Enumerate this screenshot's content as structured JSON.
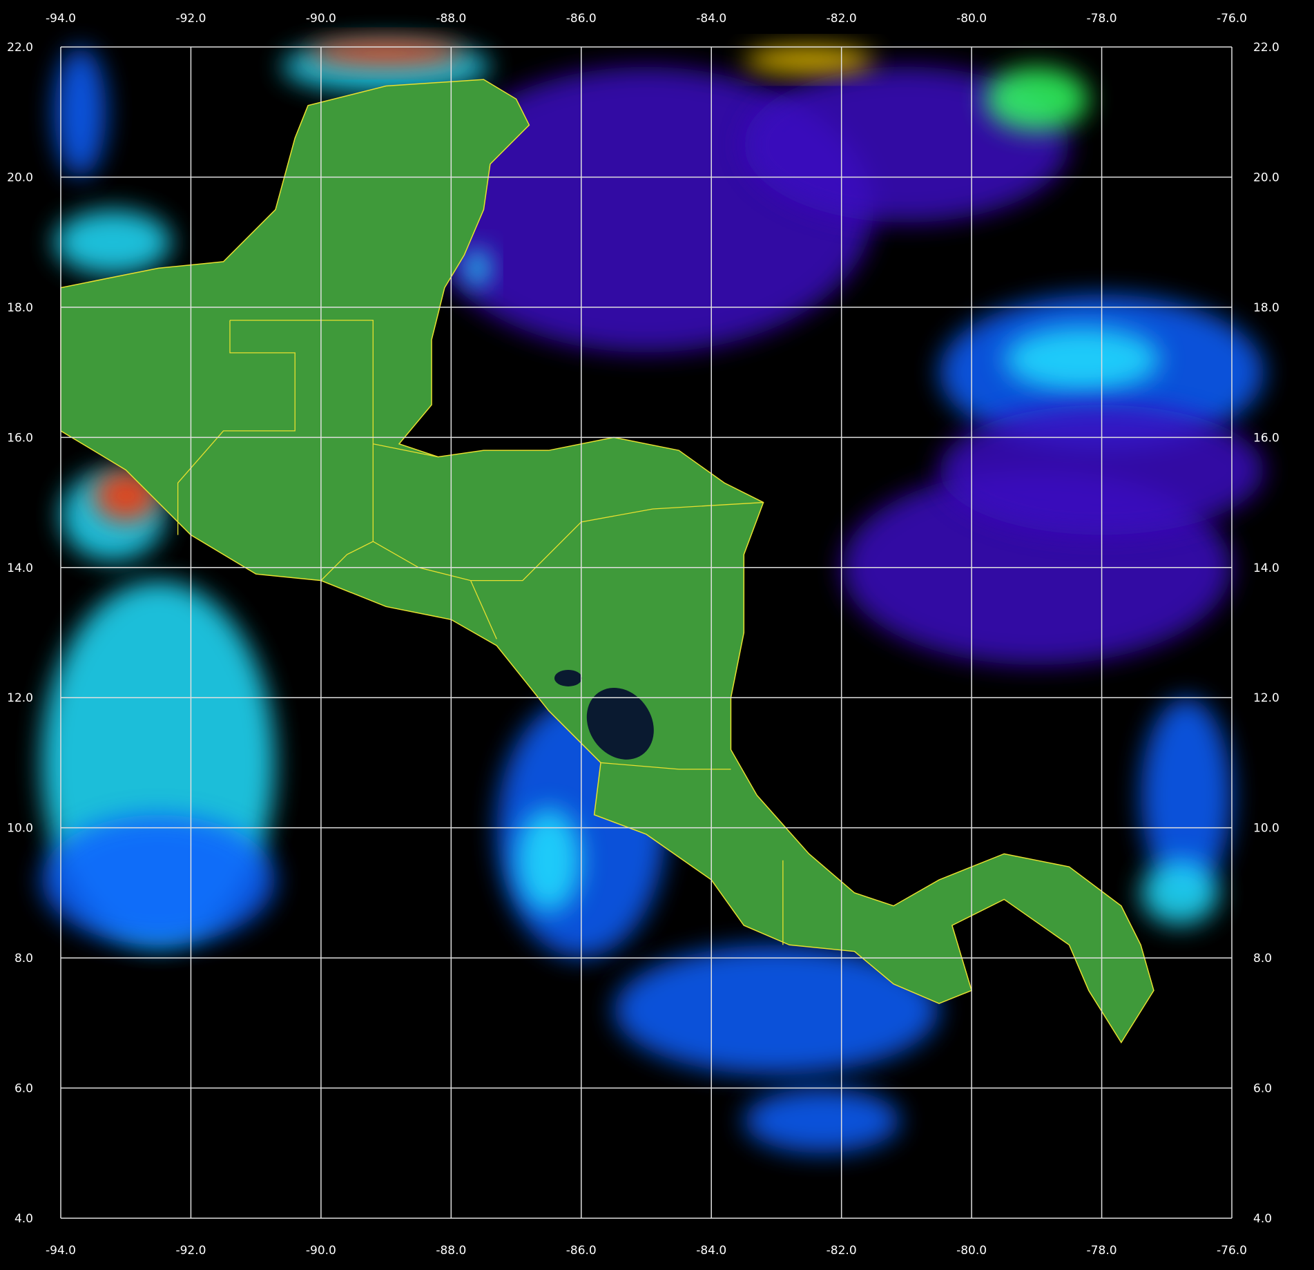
{
  "map": {
    "lon_range": [
      -94.0,
      -76.0
    ],
    "lat_range": [
      4.0,
      22.0
    ],
    "lon_ticks": [
      "-94.0",
      "-92.0",
      "-90.0",
      "-88.0",
      "-86.0",
      "-84.0",
      "-82.0",
      "-80.0",
      "-78.0",
      "-76.0"
    ],
    "lat_ticks": [
      "22.0",
      "20.0",
      "18.0",
      "16.0",
      "14.0",
      "12.0",
      "10.0",
      "8.0",
      "6.0",
      "4.0"
    ],
    "grid": true,
    "colors": {
      "background": "#000000",
      "grid": "#e0e0e0",
      "land": "#3f9a3a",
      "border": "#e8e030",
      "ocean_low": "#3a10c0",
      "ocean_mid": "#1060ff",
      "ocean_high": "#20e0ff",
      "ocean_peak": "#ff3000"
    }
  }
}
